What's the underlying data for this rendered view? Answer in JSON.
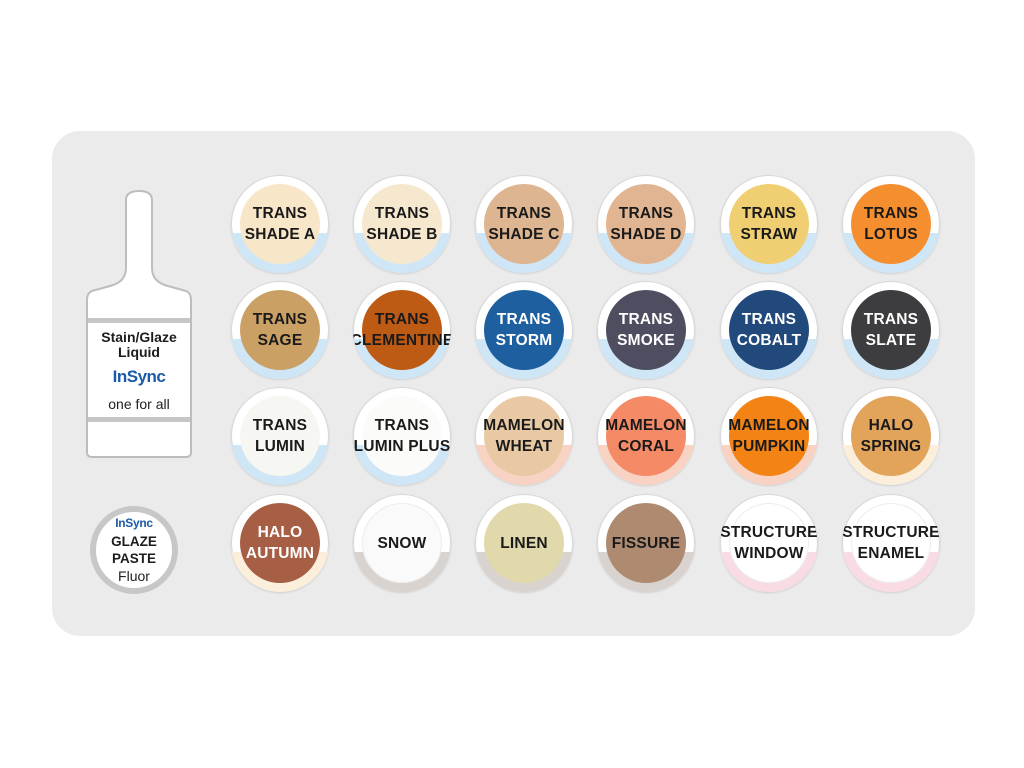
{
  "vial": {
    "line1": "Stain/Glaze",
    "line2": "Liquid",
    "brand": "InSync",
    "tagline": "one for all"
  },
  "paste": {
    "brand": "InSync",
    "line1": "GLAZE",
    "line2": "PASTE",
    "line3": "Fluor"
  },
  "wells": [
    {
      "lines": [
        "TRANS",
        "SHADE A"
      ],
      "color": "#f8e6c8",
      "pool": "#cfe6f7",
      "text": "#1a1a1a"
    },
    {
      "lines": [
        "TRANS",
        "SHADE B"
      ],
      "color": "#f6e8cf",
      "pool": "#cfe6f7",
      "text": "#1a1a1a"
    },
    {
      "lines": [
        "TRANS",
        "SHADE C"
      ],
      "color": "#ddb590",
      "pool": "#cfe6f7",
      "text": "#1a1a1a"
    },
    {
      "lines": [
        "TRANS",
        "SHADE D"
      ],
      "color": "#e2b592",
      "pool": "#cfe6f7",
      "text": "#1a1a1a"
    },
    {
      "lines": [
        "TRANS",
        "STRAW"
      ],
      "color": "#f0cf72",
      "pool": "#cfe6f7",
      "text": "#1a1a1a"
    },
    {
      "lines": [
        "TRANS",
        "LOTUS"
      ],
      "color": "#f58e2e",
      "pool": "#cfe6f7",
      "text": "#1a1a1a"
    },
    {
      "lines": [
        "TRANS",
        "SAGE"
      ],
      "color": "#caa064",
      "pool": "#cfe6f7",
      "text": "#1a1a1a"
    },
    {
      "lines": [
        "TRANS",
        "CLEMENTINE"
      ],
      "color": "#bd5a14",
      "pool": "#cfe6f7",
      "text": "#1a1a1a"
    },
    {
      "lines": [
        "TRANS",
        "STORM"
      ],
      "color": "#1e5fa0",
      "pool": "#cfe6f7",
      "text": "#ffffff"
    },
    {
      "lines": [
        "TRANS",
        "SMOKE"
      ],
      "color": "#4e4e60",
      "pool": "#cfe6f7",
      "text": "#ffffff"
    },
    {
      "lines": [
        "TRANS",
        "COBALT"
      ],
      "color": "#21497b",
      "pool": "#cfe6f7",
      "text": "#ffffff"
    },
    {
      "lines": [
        "TRANS",
        "SLATE"
      ],
      "color": "#3d3d40",
      "pool": "#cfe6f7",
      "text": "#ffffff"
    },
    {
      "lines": [
        "TRANS",
        "LUMIN"
      ],
      "color": "#f6f6f2",
      "pool": "#cfe6f7",
      "text": "#1a1a1a"
    },
    {
      "lines": [
        "TRANS",
        "LUMIN PLUS"
      ],
      "color": "#fbfbf9",
      "pool": "#cfe6f7",
      "text": "#1a1a1a"
    },
    {
      "lines": [
        "MAMELON",
        "WHEAT"
      ],
      "color": "#e8c9a3",
      "pool": "#f8d3c4",
      "text": "#1a1a1a"
    },
    {
      "lines": [
        "MAMELON",
        "CORAL"
      ],
      "color": "#f48a66",
      "pool": "#f8d3c4",
      "text": "#1a1a1a"
    },
    {
      "lines": [
        "MAMELON",
        "PUMPKIN"
      ],
      "color": "#f28314",
      "pool": "#f8d3c4",
      "text": "#1a1a1a"
    },
    {
      "lines": [
        "HALO",
        "SPRING"
      ],
      "color": "#e2a35a",
      "pool": "#fbeedb",
      "text": "#1a1a1a"
    },
    {
      "lines": [
        "HALO",
        "AUTUMN"
      ],
      "color": "#a65f45",
      "pool": "#fbeedb",
      "text": "#ffffff"
    },
    {
      "lines": [
        "SNOW"
      ],
      "color": "#fafafa",
      "pool": "#d9d3d0",
      "text": "#1a1a1a"
    },
    {
      "lines": [
        "LINEN"
      ],
      "color": "#e1d9ac",
      "pool": "#d9d3d0",
      "text": "#1a1a1a"
    },
    {
      "lines": [
        "FISSURE"
      ],
      "color": "#ad8a70",
      "pool": "#d9d3d0",
      "text": "#1a1a1a"
    },
    {
      "lines": [
        "STRUCTURE",
        "WINDOW"
      ],
      "color": "#ffffff",
      "pool": "#f8dbe3",
      "text": "#1a1a1a"
    },
    {
      "lines": [
        "STRUCTURE",
        "ENAMEL"
      ],
      "color": "#ffffff",
      "pool": "#f8dbe3",
      "text": "#1a1a1a"
    }
  ]
}
